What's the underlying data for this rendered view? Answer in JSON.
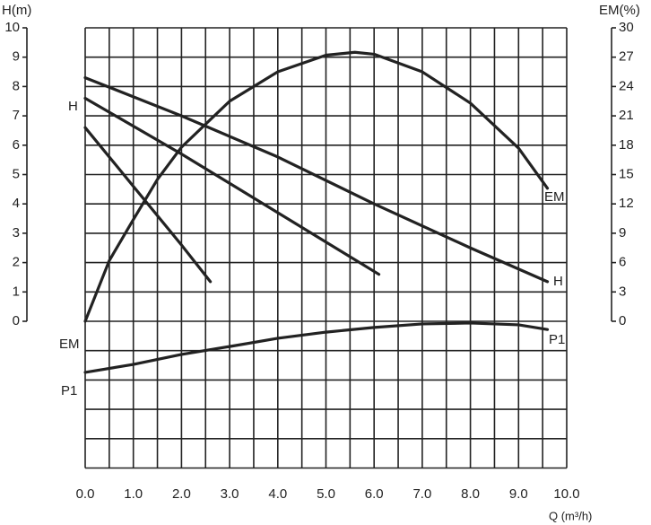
{
  "chart_data": {
    "type": "line",
    "y_label": "H(m)",
    "y2_label": "EM(%)",
    "x_label": "Q (m³/h)",
    "xlim": [
      0,
      10
    ],
    "xticks": [
      {
        "value": 0,
        "label": "0.0"
      },
      {
        "value": 1,
        "label": "1.0"
      },
      {
        "value": 2,
        "label": "2.0"
      },
      {
        "value": 3,
        "label": "3.0"
      },
      {
        "value": 4,
        "label": "4.0"
      },
      {
        "value": 5,
        "label": "5.0"
      },
      {
        "value": 6,
        "label": "6.0"
      },
      {
        "value": 7,
        "label": "7.0"
      },
      {
        "value": 8,
        "label": "8.0"
      },
      {
        "value": 9,
        "label": "9.0"
      },
      {
        "value": 10,
        "label": "10.0"
      }
    ],
    "ylim": [
      -5,
      10
    ],
    "yticks": [
      0,
      1,
      2,
      3,
      4,
      5,
      6,
      7,
      8,
      9,
      10
    ],
    "y2lim": [
      -15,
      30
    ],
    "y2ticks": [
      0,
      3,
      6,
      9,
      12,
      15,
      18,
      21,
      24,
      27,
      30
    ],
    "grid": true,
    "color": "#222222",
    "series": [
      {
        "axis": "y2",
        "x": [
          0,
          0.5,
          1,
          1.5,
          2,
          3,
          4,
          5,
          5.6,
          6,
          7,
          8,
          9,
          9.6
        ],
        "values": [
          0,
          6.2,
          10.4,
          14.5,
          17.8,
          22.5,
          25.5,
          27.2,
          27.5,
          27.3,
          25.5,
          22.3,
          17.7,
          13.6
        ]
      },
      {
        "x": [
          0,
          2,
          4,
          6,
          8,
          9.6
        ],
        "values": [
          8.3,
          7.0,
          5.6,
          4.0,
          2.5,
          1.35
        ]
      },
      {
        "x": [
          0,
          2,
          4,
          6.1
        ],
        "values": [
          7.6,
          5.7,
          3.7,
          1.6
        ]
      },
      {
        "x": [
          0,
          1,
          2,
          2.6
        ],
        "values": [
          6.6,
          4.6,
          2.6,
          1.35
        ]
      },
      {
        "x": [
          0,
          1,
          2,
          3,
          4,
          5,
          6,
          7,
          8,
          9,
          9.6
        ],
        "values": [
          -1.74,
          -1.47,
          -1.13,
          -0.86,
          -0.58,
          -0.37,
          -0.21,
          -0.09,
          -0.06,
          -0.12,
          -0.28
        ]
      }
    ],
    "annotations": [
      "H",
      "EM",
      "H",
      "P1",
      "EM",
      "P1"
    ]
  }
}
